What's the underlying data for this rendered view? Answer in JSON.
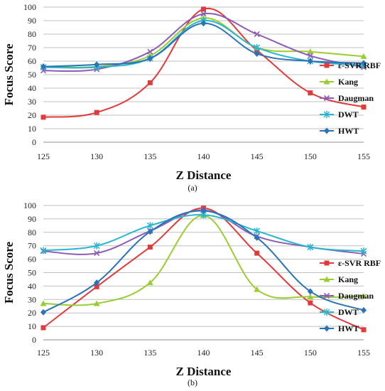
{
  "chart_data": [
    {
      "type": "line",
      "caption": "(a)",
      "xlabel": "Z Distance",
      "ylabel": "Focus Score",
      "x": [
        125,
        130,
        135,
        140,
        145,
        150,
        155
      ],
      "xlim": [
        125,
        155
      ],
      "ylim": [
        0,
        100
      ],
      "yticks": [
        0,
        10,
        20,
        30,
        40,
        50,
        60,
        70,
        80,
        90,
        100
      ],
      "grid": true,
      "legend": "right",
      "series": [
        {
          "name": "ε-SVR RBF",
          "color": "#e03b3b",
          "marker": "square",
          "values": [
            18.5,
            22,
            44,
            98.5,
            68,
            36.5,
            26
          ]
        },
        {
          "name": "Kang",
          "color": "#9acd32",
          "marker": "triangle",
          "values": [
            56,
            56,
            64,
            92,
            70,
            67,
            63.5
          ]
        },
        {
          "name": "Daugman",
          "color": "#8e5bb5",
          "marker": "x",
          "values": [
            53,
            54,
            67,
            95,
            80,
            64,
            55.5
          ]
        },
        {
          "name": "DWT",
          "color": "#27b6d1",
          "marker": "star",
          "values": [
            55.5,
            55.5,
            62,
            90,
            70,
            60,
            57
          ]
        },
        {
          "name": "HWT",
          "color": "#2a73b8",
          "marker": "diamond",
          "values": [
            56,
            57.5,
            62,
            88,
            65.5,
            60,
            58.5
          ]
        }
      ]
    },
    {
      "type": "line",
      "caption": "(b)",
      "xlabel": "Z Distance",
      "ylabel": "Focus Score",
      "x": [
        125,
        130,
        135,
        140,
        145,
        150,
        155
      ],
      "xlim": [
        125,
        155
      ],
      "ylim": [
        0,
        100
      ],
      "yticks": [
        0,
        10,
        20,
        30,
        40,
        50,
        60,
        70,
        80,
        90,
        100
      ],
      "grid": true,
      "legend": "right",
      "series": [
        {
          "name": "ε-SVR RBF",
          "color": "#e03b3b",
          "marker": "square",
          "values": [
            9,
            39.5,
            69,
            98,
            64.5,
            27.5,
            7.5
          ]
        },
        {
          "name": "Kang",
          "color": "#9acd32",
          "marker": "triangle",
          "values": [
            27,
            27,
            42.5,
            92.5,
            37.5,
            32,
            32.5
          ]
        },
        {
          "name": "Daugman",
          "color": "#8e5bb5",
          "marker": "x",
          "values": [
            66,
            64.5,
            81,
            96.5,
            77,
            69,
            64
          ]
        },
        {
          "name": "DWT",
          "color": "#27b6d1",
          "marker": "star",
          "values": [
            66.5,
            70,
            85,
            93,
            81,
            69,
            66
          ]
        },
        {
          "name": "HWT",
          "color": "#2a73b8",
          "marker": "diamond",
          "values": [
            20.5,
            42.5,
            80.5,
            96,
            76,
            36,
            22
          ]
        }
      ]
    }
  ]
}
